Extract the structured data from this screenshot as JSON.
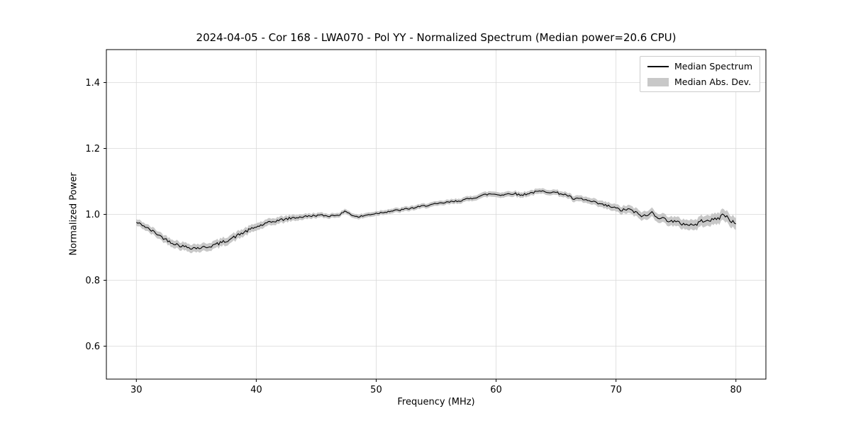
{
  "figure": {
    "background": "#ffffff"
  },
  "chart_data": {
    "type": "line",
    "title": "2024-04-05 - Cor 168 - LWA070 - Pol YY - Normalized Spectrum (Median power=20.6 CPU)",
    "xlabel": "Frequency (MHz)",
    "ylabel": "Normalized Power",
    "xlim": [
      27.5,
      82.5
    ],
    "ylim": [
      0.5,
      1.5
    ],
    "xticks": [
      30,
      40,
      50,
      60,
      70,
      80
    ],
    "yticks": [
      0.6,
      0.8,
      1.0,
      1.2,
      1.4
    ],
    "grid": true,
    "grid_color": "#d9d9d9",
    "line_color": "#000000",
    "band_color": "#c8c8c8",
    "legend": [
      {
        "label": "Median Spectrum",
        "swatch": "line",
        "color": "#000000"
      },
      {
        "label": "Median Abs. Dev.",
        "swatch": "band",
        "color": "#c8c8c8"
      }
    ],
    "noise_amplitude": 0.004,
    "x_start": 30.0,
    "x_step": 0.5,
    "y": [
      0.975,
      0.968,
      0.956,
      0.946,
      0.934,
      0.923,
      0.914,
      0.907,
      0.902,
      0.899,
      0.898,
      0.899,
      0.902,
      0.907,
      0.913,
      0.92,
      0.928,
      0.937,
      0.946,
      0.954,
      0.962,
      0.968,
      0.974,
      0.979,
      0.983,
      0.986,
      0.989,
      0.991,
      0.993,
      0.995,
      0.997,
      0.997,
      0.995,
      0.997,
      1.0,
      1.01,
      0.997,
      0.992,
      0.996,
      1.0,
      1.003,
      1.006,
      1.009,
      1.011,
      1.013,
      1.016,
      1.019,
      1.022,
      1.026,
      1.029,
      1.031,
      1.034,
      1.037,
      1.039,
      1.042,
      1.045,
      1.049,
      1.054,
      1.059,
      1.062,
      1.061,
      1.059,
      1.062,
      1.064,
      1.058,
      1.062,
      1.066,
      1.069,
      1.07,
      1.068,
      1.066,
      1.062,
      1.057,
      1.045,
      1.048,
      1.043,
      1.038,
      1.033,
      1.028,
      1.024,
      1.018,
      1.012,
      1.016,
      1.008,
      0.998,
      0.994,
      1.006,
      0.992,
      0.986,
      0.981,
      0.976,
      0.972,
      0.97,
      0.967,
      0.976,
      0.986,
      0.981,
      0.988,
      1.0,
      0.984,
      0.971
    ],
    "band_x": [
      30,
      32,
      34,
      36,
      38,
      40,
      42,
      44,
      46,
      48,
      50,
      53,
      56,
      59,
      62,
      65,
      67,
      69,
      71,
      73,
      75,
      77,
      79,
      80
    ],
    "band_hw": [
      0.01,
      0.011,
      0.012,
      0.012,
      0.012,
      0.011,
      0.01,
      0.008,
      0.007,
      0.007,
      0.007,
      0.007,
      0.007,
      0.008,
      0.008,
      0.008,
      0.009,
      0.01,
      0.012,
      0.013,
      0.014,
      0.016,
      0.017,
      0.018
    ]
  }
}
